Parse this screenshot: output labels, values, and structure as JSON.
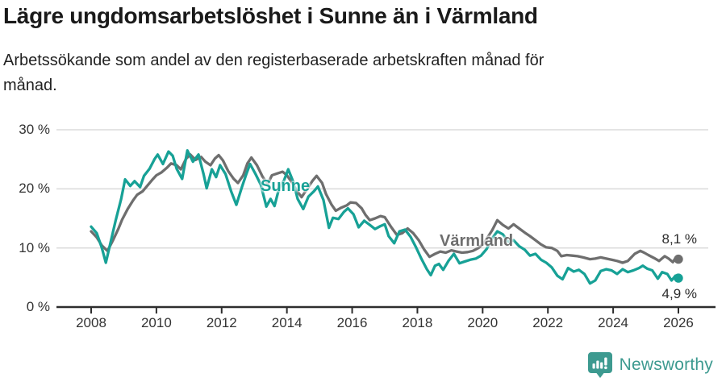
{
  "header": {
    "title": "Lägre ungdomsarbetslöshet i Sunne än i Värmland",
    "subtitle": "Arbetssökande som andel av den registerbaserade arbetskraften månad för månad."
  },
  "footer": {
    "brand": "Newsworthy"
  },
  "colors": {
    "title_text": "#1a1a1a",
    "body_text": "#222222",
    "tick_text": "#333333",
    "grid": "#dcdcdc",
    "axis": "#2d2d2d",
    "sunne_teal": "#17a196",
    "varmland_gray": "#6e6e6e",
    "brand_teal": "#3d9a90"
  },
  "chart_data": {
    "type": "line",
    "title": "Lägre ungdomsarbetslöshet i Sunne än i Värmland",
    "subtitle": "Arbetssökande som andel av den registerbaserade arbetskraften månad för månad.",
    "grid": "horizontal",
    "legend_position": "inline-labels-on-lines",
    "x_axis": {
      "range": [
        2008,
        2026
      ],
      "ticks": [
        {
          "value": 2008,
          "label": "2008"
        },
        {
          "value": 2010,
          "label": "2010"
        },
        {
          "value": 2012,
          "label": "2012"
        },
        {
          "value": 2014,
          "label": "2014"
        },
        {
          "value": 2016,
          "label": "2016"
        },
        {
          "value": 2018,
          "label": "2018"
        },
        {
          "value": 2020,
          "label": "2020"
        },
        {
          "value": 2022,
          "label": "2022"
        },
        {
          "value": 2024,
          "label": "2024"
        },
        {
          "value": 2026,
          "label": "2026"
        }
      ]
    },
    "y_axis": {
      "range": [
        0,
        30
      ],
      "unit": "%",
      "gridlines": [
        10,
        20,
        30
      ],
      "ticks": [
        {
          "value": 0,
          "label": "0 %"
        },
        {
          "value": 10,
          "label": "10 %"
        },
        {
          "value": 20,
          "label": "20 %"
        },
        {
          "value": 30,
          "label": "30 %"
        }
      ]
    },
    "series": [
      {
        "name": "Sunne",
        "color": "#17a196",
        "end_label": "4,9 %",
        "last_value": 4.9,
        "points": [
          [
            2008.0,
            13.6
          ],
          [
            2008.17,
            12.5
          ],
          [
            2008.33,
            10.0
          ],
          [
            2008.45,
            7.5
          ],
          [
            2008.58,
            10.6
          ],
          [
            2008.75,
            14.6
          ],
          [
            2008.92,
            18.3
          ],
          [
            2009.04,
            21.6
          ],
          [
            2009.2,
            20.5
          ],
          [
            2009.33,
            21.3
          ],
          [
            2009.5,
            20.3
          ],
          [
            2009.62,
            22.2
          ],
          [
            2009.79,
            23.4
          ],
          [
            2009.95,
            25.1
          ],
          [
            2010.04,
            25.8
          ],
          [
            2010.2,
            24.2
          ],
          [
            2010.37,
            26.3
          ],
          [
            2010.5,
            25.6
          ],
          [
            2010.62,
            23.4
          ],
          [
            2010.79,
            21.7
          ],
          [
            2010.95,
            26.5
          ],
          [
            2011.12,
            24.6
          ],
          [
            2011.29,
            25.8
          ],
          [
            2011.45,
            22.4
          ],
          [
            2011.54,
            20.1
          ],
          [
            2011.7,
            23.3
          ],
          [
            2011.83,
            22.0
          ],
          [
            2011.95,
            24.0
          ],
          [
            2012.12,
            22.5
          ],
          [
            2012.29,
            19.6
          ],
          [
            2012.45,
            17.3
          ],
          [
            2012.62,
            20.3
          ],
          [
            2012.75,
            22.4
          ],
          [
            2012.87,
            24.2
          ],
          [
            2013.04,
            22.5
          ],
          [
            2013.2,
            20.7
          ],
          [
            2013.37,
            17.0
          ],
          [
            2013.5,
            18.3
          ],
          [
            2013.62,
            17.1
          ],
          [
            2013.75,
            19.9
          ],
          [
            2013.91,
            21.4
          ],
          [
            2014.04,
            23.3
          ],
          [
            2014.2,
            21.1
          ],
          [
            2014.33,
            18.3
          ],
          [
            2014.5,
            16.6
          ],
          [
            2014.66,
            18.7
          ],
          [
            2014.83,
            19.6
          ],
          [
            2014.95,
            20.4
          ],
          [
            2015.12,
            18.1
          ],
          [
            2015.29,
            13.4
          ],
          [
            2015.41,
            15.1
          ],
          [
            2015.58,
            14.9
          ],
          [
            2015.75,
            16.1
          ],
          [
            2015.87,
            16.7
          ],
          [
            2016.04,
            15.7
          ],
          [
            2016.2,
            13.5
          ],
          [
            2016.37,
            14.6
          ],
          [
            2016.54,
            13.9
          ],
          [
            2016.7,
            13.2
          ],
          [
            2016.87,
            13.7
          ],
          [
            2017.0,
            14.0
          ],
          [
            2017.12,
            12.0
          ],
          [
            2017.29,
            10.8
          ],
          [
            2017.45,
            12.8
          ],
          [
            2017.62,
            13.1
          ],
          [
            2017.79,
            11.9
          ],
          [
            2017.95,
            10.2
          ],
          [
            2018.12,
            8.2
          ],
          [
            2018.29,
            6.4
          ],
          [
            2018.41,
            5.4
          ],
          [
            2018.54,
            7.0
          ],
          [
            2018.66,
            7.3
          ],
          [
            2018.79,
            6.3
          ],
          [
            2018.95,
            7.8
          ],
          [
            2019.12,
            9.0
          ],
          [
            2019.29,
            7.4
          ],
          [
            2019.45,
            7.7
          ],
          [
            2019.62,
            8.0
          ],
          [
            2019.79,
            8.2
          ],
          [
            2019.95,
            8.7
          ],
          [
            2020.12,
            9.8
          ],
          [
            2020.29,
            11.6
          ],
          [
            2020.45,
            12.8
          ],
          [
            2020.62,
            12.3
          ],
          [
            2020.79,
            11.0
          ],
          [
            2020.95,
            11.3
          ],
          [
            2021.12,
            10.3
          ],
          [
            2021.29,
            9.7
          ],
          [
            2021.45,
            8.7
          ],
          [
            2021.62,
            9.0
          ],
          [
            2021.79,
            8.0
          ],
          [
            2021.95,
            7.5
          ],
          [
            2022.12,
            6.7
          ],
          [
            2022.29,
            5.3
          ],
          [
            2022.45,
            4.7
          ],
          [
            2022.62,
            6.6
          ],
          [
            2022.79,
            6.0
          ],
          [
            2022.95,
            6.3
          ],
          [
            2023.12,
            5.6
          ],
          [
            2023.29,
            4.0
          ],
          [
            2023.45,
            4.5
          ],
          [
            2023.62,
            6.1
          ],
          [
            2023.79,
            6.4
          ],
          [
            2023.95,
            6.2
          ],
          [
            2024.12,
            5.6
          ],
          [
            2024.29,
            6.4
          ],
          [
            2024.45,
            5.9
          ],
          [
            2024.62,
            6.2
          ],
          [
            2024.79,
            6.6
          ],
          [
            2024.91,
            7.0
          ],
          [
            2025.04,
            6.5
          ],
          [
            2025.2,
            6.2
          ],
          [
            2025.37,
            4.8
          ],
          [
            2025.5,
            5.9
          ],
          [
            2025.66,
            5.6
          ],
          [
            2025.79,
            4.5
          ],
          [
            2025.91,
            5.3
          ],
          [
            2026.0,
            4.9
          ]
        ]
      },
      {
        "name": "Värmland",
        "color": "#6e6e6e",
        "end_label": "8,1 %",
        "last_value": 8.1,
        "points": [
          [
            2008.0,
            12.8
          ],
          [
            2008.17,
            11.8
          ],
          [
            2008.33,
            10.4
          ],
          [
            2008.5,
            9.5
          ],
          [
            2008.66,
            11.2
          ],
          [
            2008.83,
            13.2
          ],
          [
            2008.95,
            14.8
          ],
          [
            2009.12,
            16.6
          ],
          [
            2009.29,
            18.1
          ],
          [
            2009.41,
            19.0
          ],
          [
            2009.58,
            19.6
          ],
          [
            2009.7,
            20.4
          ],
          [
            2009.87,
            21.5
          ],
          [
            2010.0,
            22.3
          ],
          [
            2010.16,
            22.8
          ],
          [
            2010.33,
            23.6
          ],
          [
            2010.45,
            24.3
          ],
          [
            2010.62,
            24.0
          ],
          [
            2010.75,
            23.3
          ],
          [
            2010.91,
            25.1
          ],
          [
            2011.04,
            25.8
          ],
          [
            2011.2,
            24.9
          ],
          [
            2011.37,
            25.4
          ],
          [
            2011.5,
            24.6
          ],
          [
            2011.66,
            24.0
          ],
          [
            2011.79,
            25.1
          ],
          [
            2011.91,
            25.7
          ],
          [
            2012.04,
            24.8
          ],
          [
            2012.2,
            23.0
          ],
          [
            2012.37,
            21.7
          ],
          [
            2012.5,
            21.0
          ],
          [
            2012.66,
            22.3
          ],
          [
            2012.79,
            24.3
          ],
          [
            2012.91,
            25.3
          ],
          [
            2013.08,
            24.0
          ],
          [
            2013.25,
            22.1
          ],
          [
            2013.41,
            20.8
          ],
          [
            2013.54,
            22.3
          ],
          [
            2013.7,
            22.6
          ],
          [
            2013.87,
            22.9
          ],
          [
            2014.0,
            22.3
          ],
          [
            2014.16,
            21.0
          ],
          [
            2014.33,
            19.5
          ],
          [
            2014.45,
            18.6
          ],
          [
            2014.62,
            20.0
          ],
          [
            2014.79,
            21.4
          ],
          [
            2014.91,
            22.2
          ],
          [
            2015.08,
            21.0
          ],
          [
            2015.2,
            19.1
          ],
          [
            2015.37,
            17.3
          ],
          [
            2015.5,
            16.3
          ],
          [
            2015.66,
            16.8
          ],
          [
            2015.83,
            17.2
          ],
          [
            2015.95,
            17.7
          ],
          [
            2016.12,
            17.6
          ],
          [
            2016.29,
            16.7
          ],
          [
            2016.41,
            15.6
          ],
          [
            2016.54,
            14.7
          ],
          [
            2016.7,
            15.0
          ],
          [
            2016.87,
            15.4
          ],
          [
            2017.0,
            15.2
          ],
          [
            2017.2,
            13.5
          ],
          [
            2017.37,
            12.2
          ],
          [
            2017.54,
            12.5
          ],
          [
            2017.7,
            13.3
          ],
          [
            2017.87,
            12.5
          ],
          [
            2018.04,
            11.3
          ],
          [
            2018.2,
            9.8
          ],
          [
            2018.37,
            8.5
          ],
          [
            2018.54,
            9.0
          ],
          [
            2018.7,
            9.4
          ],
          [
            2018.87,
            9.2
          ],
          [
            2019.04,
            9.6
          ],
          [
            2019.2,
            9.4
          ],
          [
            2019.37,
            9.2
          ],
          [
            2019.54,
            9.3
          ],
          [
            2019.7,
            9.5
          ],
          [
            2019.87,
            10.0
          ],
          [
            2020.04,
            10.8
          ],
          [
            2020.29,
            13.0
          ],
          [
            2020.45,
            14.7
          ],
          [
            2020.62,
            13.9
          ],
          [
            2020.79,
            13.3
          ],
          [
            2020.95,
            14.0
          ],
          [
            2021.12,
            13.3
          ],
          [
            2021.29,
            12.6
          ],
          [
            2021.45,
            12.0
          ],
          [
            2021.62,
            11.3
          ],
          [
            2021.79,
            10.6
          ],
          [
            2021.95,
            10.1
          ],
          [
            2022.12,
            10.0
          ],
          [
            2022.29,
            9.5
          ],
          [
            2022.41,
            8.6
          ],
          [
            2022.58,
            8.8
          ],
          [
            2022.75,
            8.7
          ],
          [
            2022.91,
            8.6
          ],
          [
            2023.08,
            8.4
          ],
          [
            2023.29,
            8.1
          ],
          [
            2023.45,
            8.2
          ],
          [
            2023.62,
            8.4
          ],
          [
            2023.79,
            8.2
          ],
          [
            2023.95,
            8.0
          ],
          [
            2024.12,
            7.8
          ],
          [
            2024.29,
            7.5
          ],
          [
            2024.45,
            7.8
          ],
          [
            2024.66,
            9.0
          ],
          [
            2024.83,
            9.5
          ],
          [
            2024.95,
            9.2
          ],
          [
            2025.08,
            8.8
          ],
          [
            2025.25,
            8.3
          ],
          [
            2025.41,
            7.8
          ],
          [
            2025.58,
            8.6
          ],
          [
            2025.7,
            8.2
          ],
          [
            2025.83,
            7.6
          ],
          [
            2025.91,
            8.3
          ],
          [
            2026.0,
            8.1
          ]
        ]
      }
    ]
  }
}
